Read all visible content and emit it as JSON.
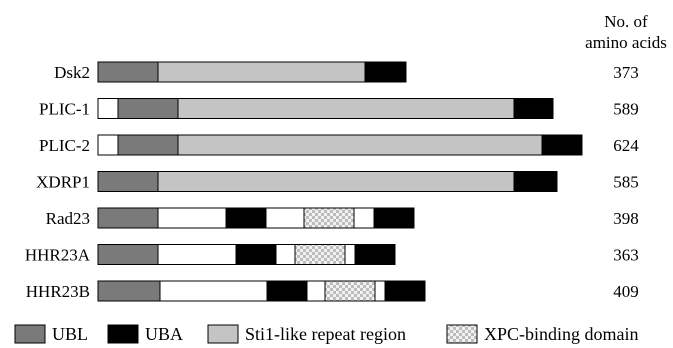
{
  "header": {
    "line1": "No. of",
    "line2": "amino acids"
  },
  "domain_types": {
    "ubl": {
      "label": "UBL",
      "color": "#7a7a7a"
    },
    "uba": {
      "label": "UBA",
      "color": "#000000"
    },
    "sti1": {
      "label": "Sti1-like repeat region",
      "color": "#c4c4c4"
    },
    "xpc": {
      "label": "XPC-binding domain",
      "color": "#e4e4e4",
      "pattern": "checkered"
    },
    "none": {
      "color": "#ffffff"
    }
  },
  "proteins": [
    {
      "name": "Dsk2",
      "length": "373",
      "segments": [
        [
          "ubl",
          60
        ],
        [
          "sti1",
          207
        ],
        [
          "uba",
          41
        ]
      ]
    },
    {
      "name": "PLIC-1",
      "length": "589",
      "segments": [
        [
          "none",
          20
        ],
        [
          "ubl",
          60
        ],
        [
          "sti1",
          336
        ],
        [
          "uba",
          39
        ]
      ]
    },
    {
      "name": "PLIC-2",
      "length": "624",
      "segments": [
        [
          "none",
          20
        ],
        [
          "ubl",
          60
        ],
        [
          "sti1",
          364
        ],
        [
          "uba",
          40
        ]
      ]
    },
    {
      "name": "XDRP1",
      "length": "585",
      "segments": [
        [
          "ubl",
          60
        ],
        [
          "sti1",
          356
        ],
        [
          "uba",
          43
        ]
      ]
    },
    {
      "name": "Rad23",
      "length": "398",
      "segments": [
        [
          "ubl",
          60
        ],
        [
          "none",
          68
        ],
        [
          "uba",
          40
        ],
        [
          "none",
          38
        ],
        [
          "xpc",
          50
        ],
        [
          "none",
          20
        ],
        [
          "uba",
          40
        ]
      ]
    },
    {
      "name": "HHR23A",
      "length": "363",
      "segments": [
        [
          "ubl",
          60
        ],
        [
          "none",
          78
        ],
        [
          "uba",
          40
        ],
        [
          "none",
          19
        ],
        [
          "xpc",
          50
        ],
        [
          "none",
          10
        ],
        [
          "uba",
          40
        ]
      ]
    },
    {
      "name": "HHR23B",
      "length": "409",
      "segments": [
        [
          "ubl",
          62
        ],
        [
          "none",
          107
        ],
        [
          "uba",
          40
        ],
        [
          "none",
          18
        ],
        [
          "xpc",
          50
        ],
        [
          "none",
          10
        ],
        [
          "uba",
          40
        ]
      ]
    }
  ],
  "legend": [
    "ubl",
    "uba",
    "sti1",
    "xpc"
  ]
}
